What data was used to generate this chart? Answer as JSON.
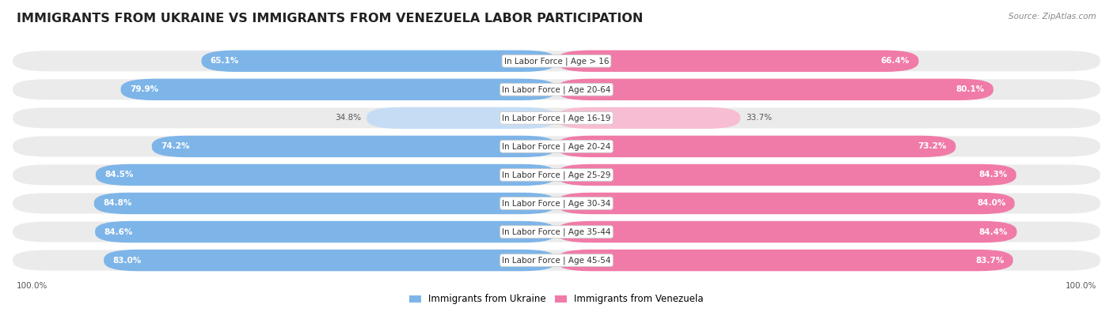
{
  "title": "IMMIGRANTS FROM UKRAINE VS IMMIGRANTS FROM VENEZUELA LABOR PARTICIPATION",
  "source": "Source: ZipAtlas.com",
  "categories": [
    "In Labor Force | Age > 16",
    "In Labor Force | Age 20-64",
    "In Labor Force | Age 16-19",
    "In Labor Force | Age 20-24",
    "In Labor Force | Age 25-29",
    "In Labor Force | Age 30-34",
    "In Labor Force | Age 35-44",
    "In Labor Force | Age 45-54"
  ],
  "ukraine_values": [
    65.1,
    79.9,
    34.8,
    74.2,
    84.5,
    84.8,
    84.6,
    83.0
  ],
  "venezuela_values": [
    66.4,
    80.1,
    33.7,
    73.2,
    84.3,
    84.0,
    84.4,
    83.7
  ],
  "ukraine_color_strong": "#7EB5E8",
  "ukraine_color_light": "#C5DDF4",
  "venezuela_color_strong": "#F07BA8",
  "venezuela_color_light": "#F7BDD3",
  "row_bg_color": "#EBEBEB",
  "threshold_strong": 50,
  "max_value": 100.0,
  "legend_ukraine": "Immigrants from Ukraine",
  "legend_venezuela": "Immigrants from Venezuela",
  "title_fontsize": 11.5,
  "label_fontsize": 7.5,
  "value_fontsize": 7.5,
  "legend_fontsize": 8.5,
  "source_fontsize": 7.5
}
